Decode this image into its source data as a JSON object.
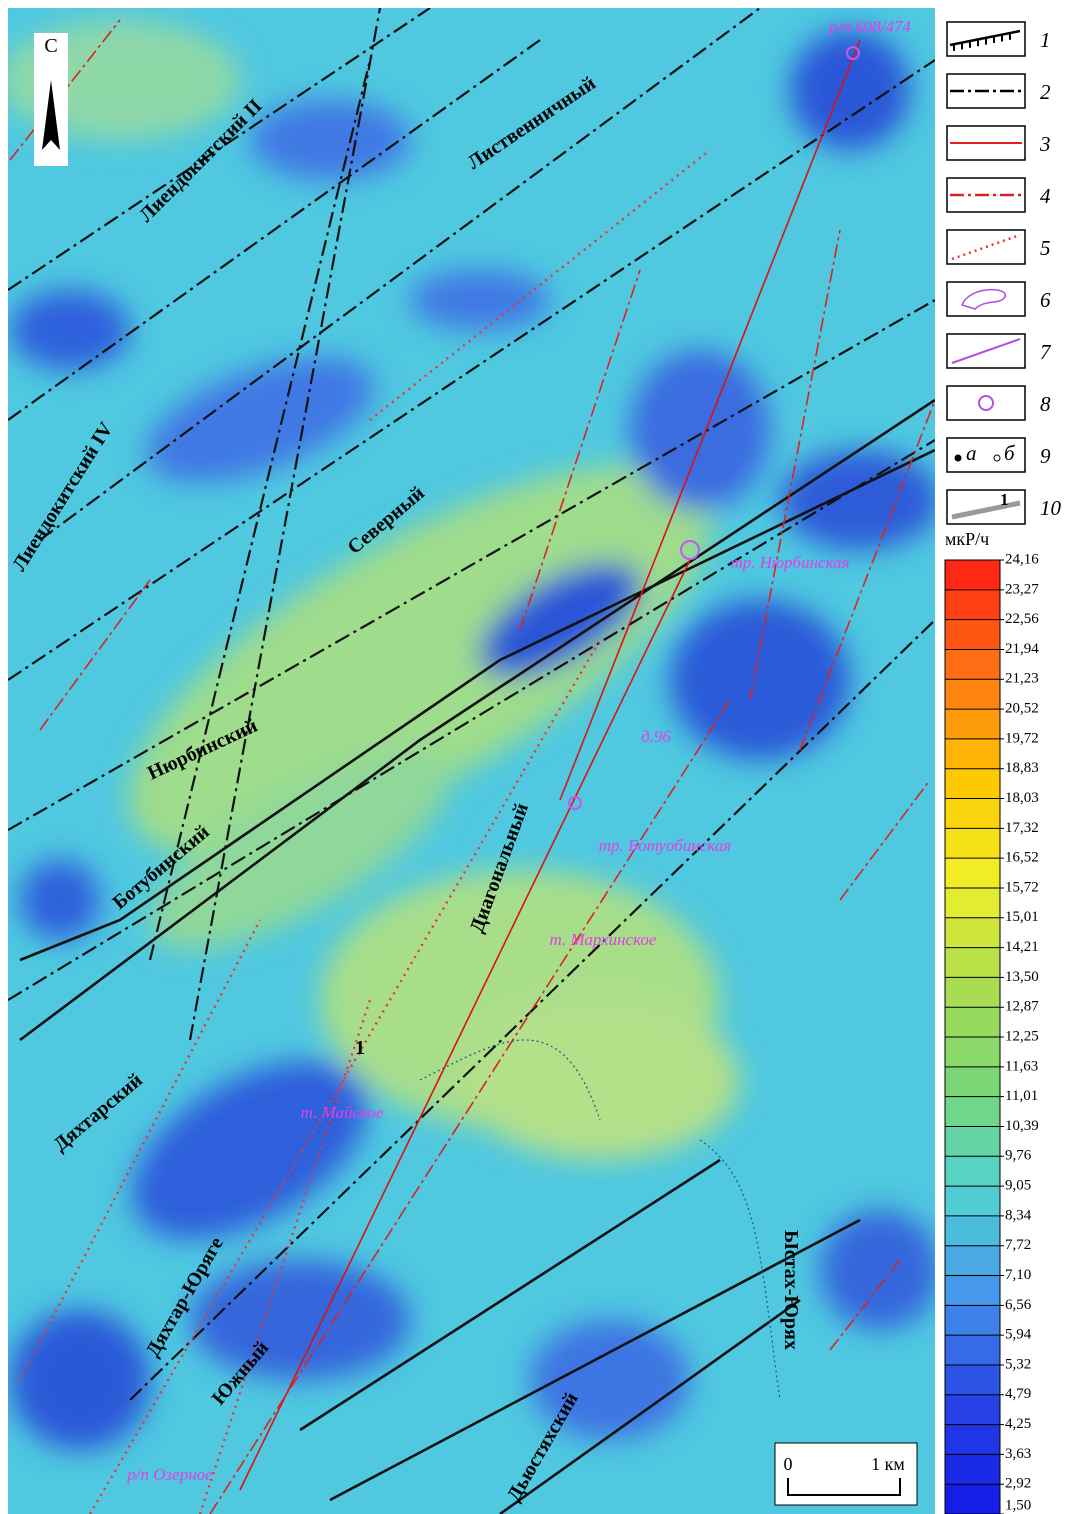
{
  "map": {
    "labels": [
      "р/п 608/474",
      "Лиендокитский II",
      "Лиственничный",
      "Лиендокитский IV",
      "Северный",
      "тр. Нюрбинская",
      "Нюрбинский",
      "д.96",
      "Ботубинский",
      "тр. Ботуобинская",
      "Диагональный",
      "т. Мархинское",
      "1",
      "т. Майское",
      "Дяхтарский",
      "Дяхтар-Юряге",
      "Южный",
      "Дьюстяхский",
      "Ыстах-Юрях",
      "р/п Озерное"
    ],
    "north": "С",
    "scale": {
      "start": "0",
      "end": "1 км"
    }
  },
  "legend": {
    "items": [
      "1",
      "2",
      "3",
      "4",
      "5",
      "6",
      "7",
      "8",
      "9",
      "10"
    ],
    "item9_a": "а",
    "item9_b": "б",
    "item10_label": "1"
  },
  "color_scale": {
    "unit": "мкР/ч",
    "labels": [
      "24,16",
      "23,27",
      "22,56",
      "21,94",
      "21,23",
      "20,52",
      "19,72",
      "18,83",
      "18,03",
      "17,32",
      "16,52",
      "15,72",
      "15,01",
      "14,21",
      "13,50",
      "12,87",
      "12,25",
      "11,63",
      "11,01",
      "10,39",
      "9,76",
      "9,05",
      "8,34",
      "7,72",
      "7,10",
      "6,56",
      "5,94",
      "5,32",
      "4,79",
      "4,25",
      "3,63",
      "2,92",
      "1,50"
    ]
  }
}
